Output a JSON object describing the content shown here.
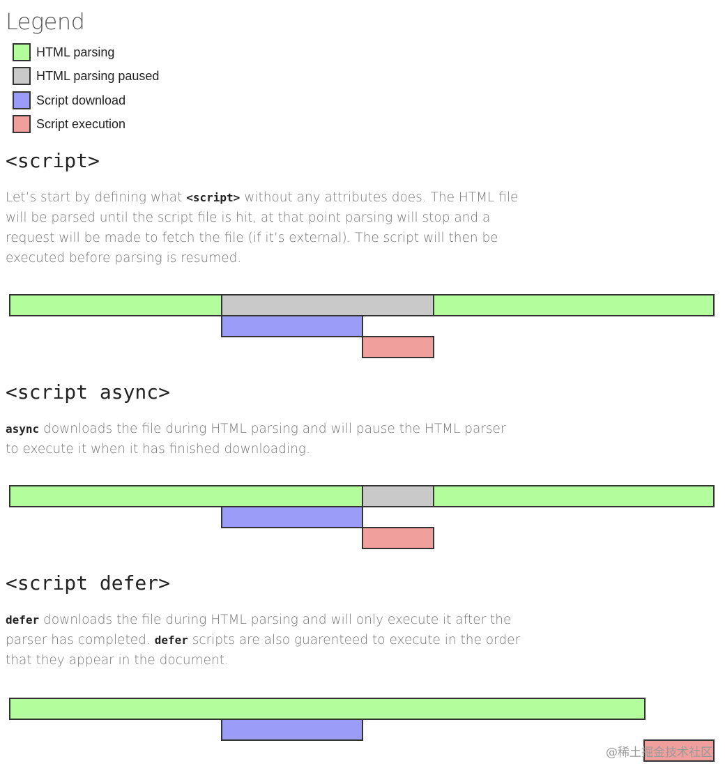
{
  "legend": {
    "title": "Legend",
    "items": [
      {
        "label": "HTML parsing",
        "color": "#b3fd9c"
      },
      {
        "label": "HTML parsing paused",
        "color": "#c9c9c9"
      },
      {
        "label": "Script download",
        "color": "#9b9cf8"
      },
      {
        "label": "Script execution",
        "color": "#f19f9c"
      }
    ]
  },
  "sections": [
    {
      "title": "<script>",
      "desc_parts": [
        "Let’s start by defining what ",
        "<script>",
        " without any attributes does. The HTML file will be parsed until the script file is hit, at that point parsing will stop and a request will be made to fetch the file (if it’s external). The script will then be executed before parsing is resumed."
      ]
    },
    {
      "title": "<script async>",
      "desc_parts": [
        "async",
        " downloads the file during HTML parsing and will pause the HTML parser to execute it when it has finished downloading."
      ]
    },
    {
      "title": "<script defer>",
      "desc_parts": [
        "defer",
        " downloads the file during HTML parsing and will only execute it after the parser has completed. ",
        "defer",
        " scripts are also guarenteed to execute in the order that they appear in the document."
      ]
    }
  ],
  "watermark": "@稀土掘金技术社区"
}
